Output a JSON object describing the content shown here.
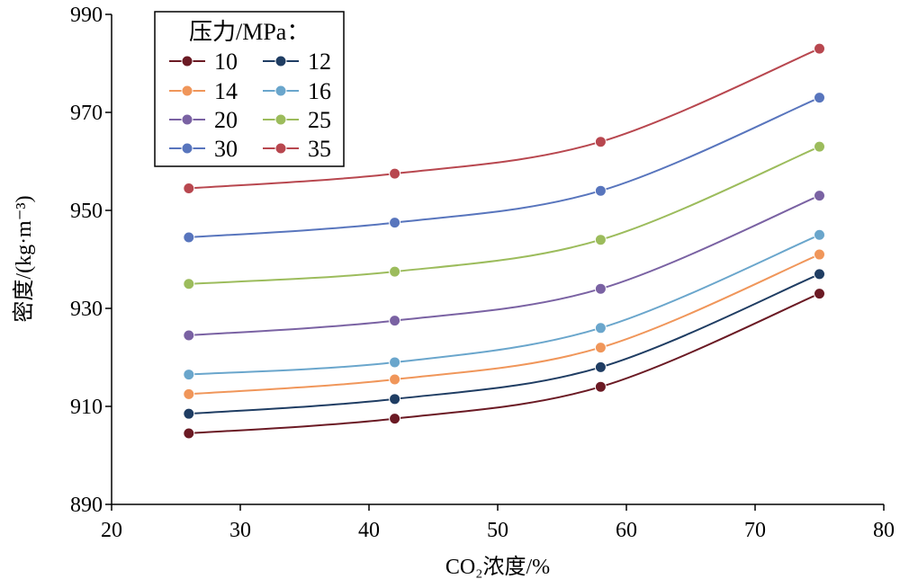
{
  "chart_data": {
    "type": "line",
    "xlabel": "CO₂浓度/%",
    "ylabel": "密度/(kg·m⁻³)",
    "xlim": [
      20,
      80
    ],
    "ylim": [
      890,
      990
    ],
    "xticks": [
      "20",
      "30",
      "40",
      "50",
      "60",
      "70",
      "80"
    ],
    "yticks": [
      "890",
      "910",
      "930",
      "950",
      "970",
      "990"
    ],
    "grid": false,
    "legend": {
      "title": "压力/MPa：",
      "position": "top-left",
      "columns": 2
    },
    "x": [
      26,
      42,
      58,
      75
    ],
    "series": [
      {
        "name": "10",
        "color": "#6b1a24",
        "values": [
          904.5,
          907.5,
          914,
          933
        ]
      },
      {
        "name": "12",
        "color": "#1f3d63",
        "values": [
          908.5,
          911.5,
          918,
          937
        ]
      },
      {
        "name": "14",
        "color": "#f0965a",
        "values": [
          912.5,
          915.5,
          922,
          941
        ]
      },
      {
        "name": "16",
        "color": "#6aa6cc",
        "values": [
          916.5,
          919,
          926,
          945
        ]
      },
      {
        "name": "20",
        "color": "#7a62a3",
        "values": [
          924.5,
          927.5,
          934,
          953
        ]
      },
      {
        "name": "25",
        "color": "#9cbc5c",
        "values": [
          935,
          937.5,
          944,
          963
        ]
      },
      {
        "name": "30",
        "color": "#5875bd",
        "values": [
          944.5,
          947.5,
          954,
          973
        ]
      },
      {
        "name": "35",
        "color": "#b8474f",
        "values": [
          954.5,
          957.5,
          964,
          983
        ]
      }
    ]
  }
}
